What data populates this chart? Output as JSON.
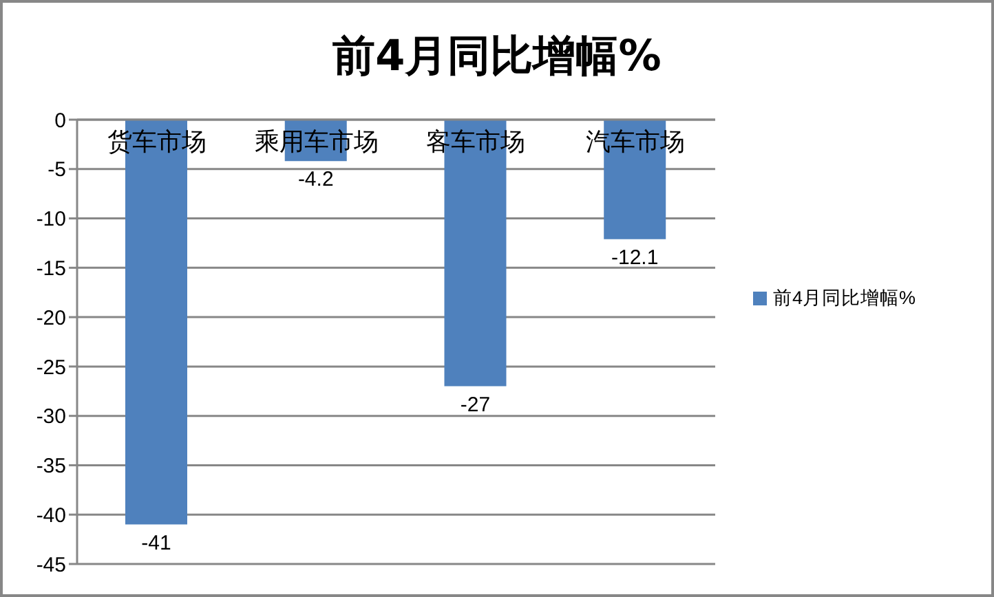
{
  "chart_data": {
    "type": "bar",
    "title": "前4月同比增幅%",
    "categories": [
      "货车市场",
      "乘用车市场",
      "客车市场",
      "汽车市场"
    ],
    "series": [
      {
        "name": "前4月同比增幅%",
        "color": "#4f81bd",
        "values": [
          -41,
          -4.2,
          -27,
          -12.1
        ]
      }
    ],
    "ylim": [
      -45,
      0
    ],
    "yticks": [
      -45,
      -40,
      -35,
      -30,
      -25,
      -20,
      -15,
      -10,
      -5,
      0
    ],
    "grid": "y",
    "legend": "right",
    "data_labels": true
  }
}
